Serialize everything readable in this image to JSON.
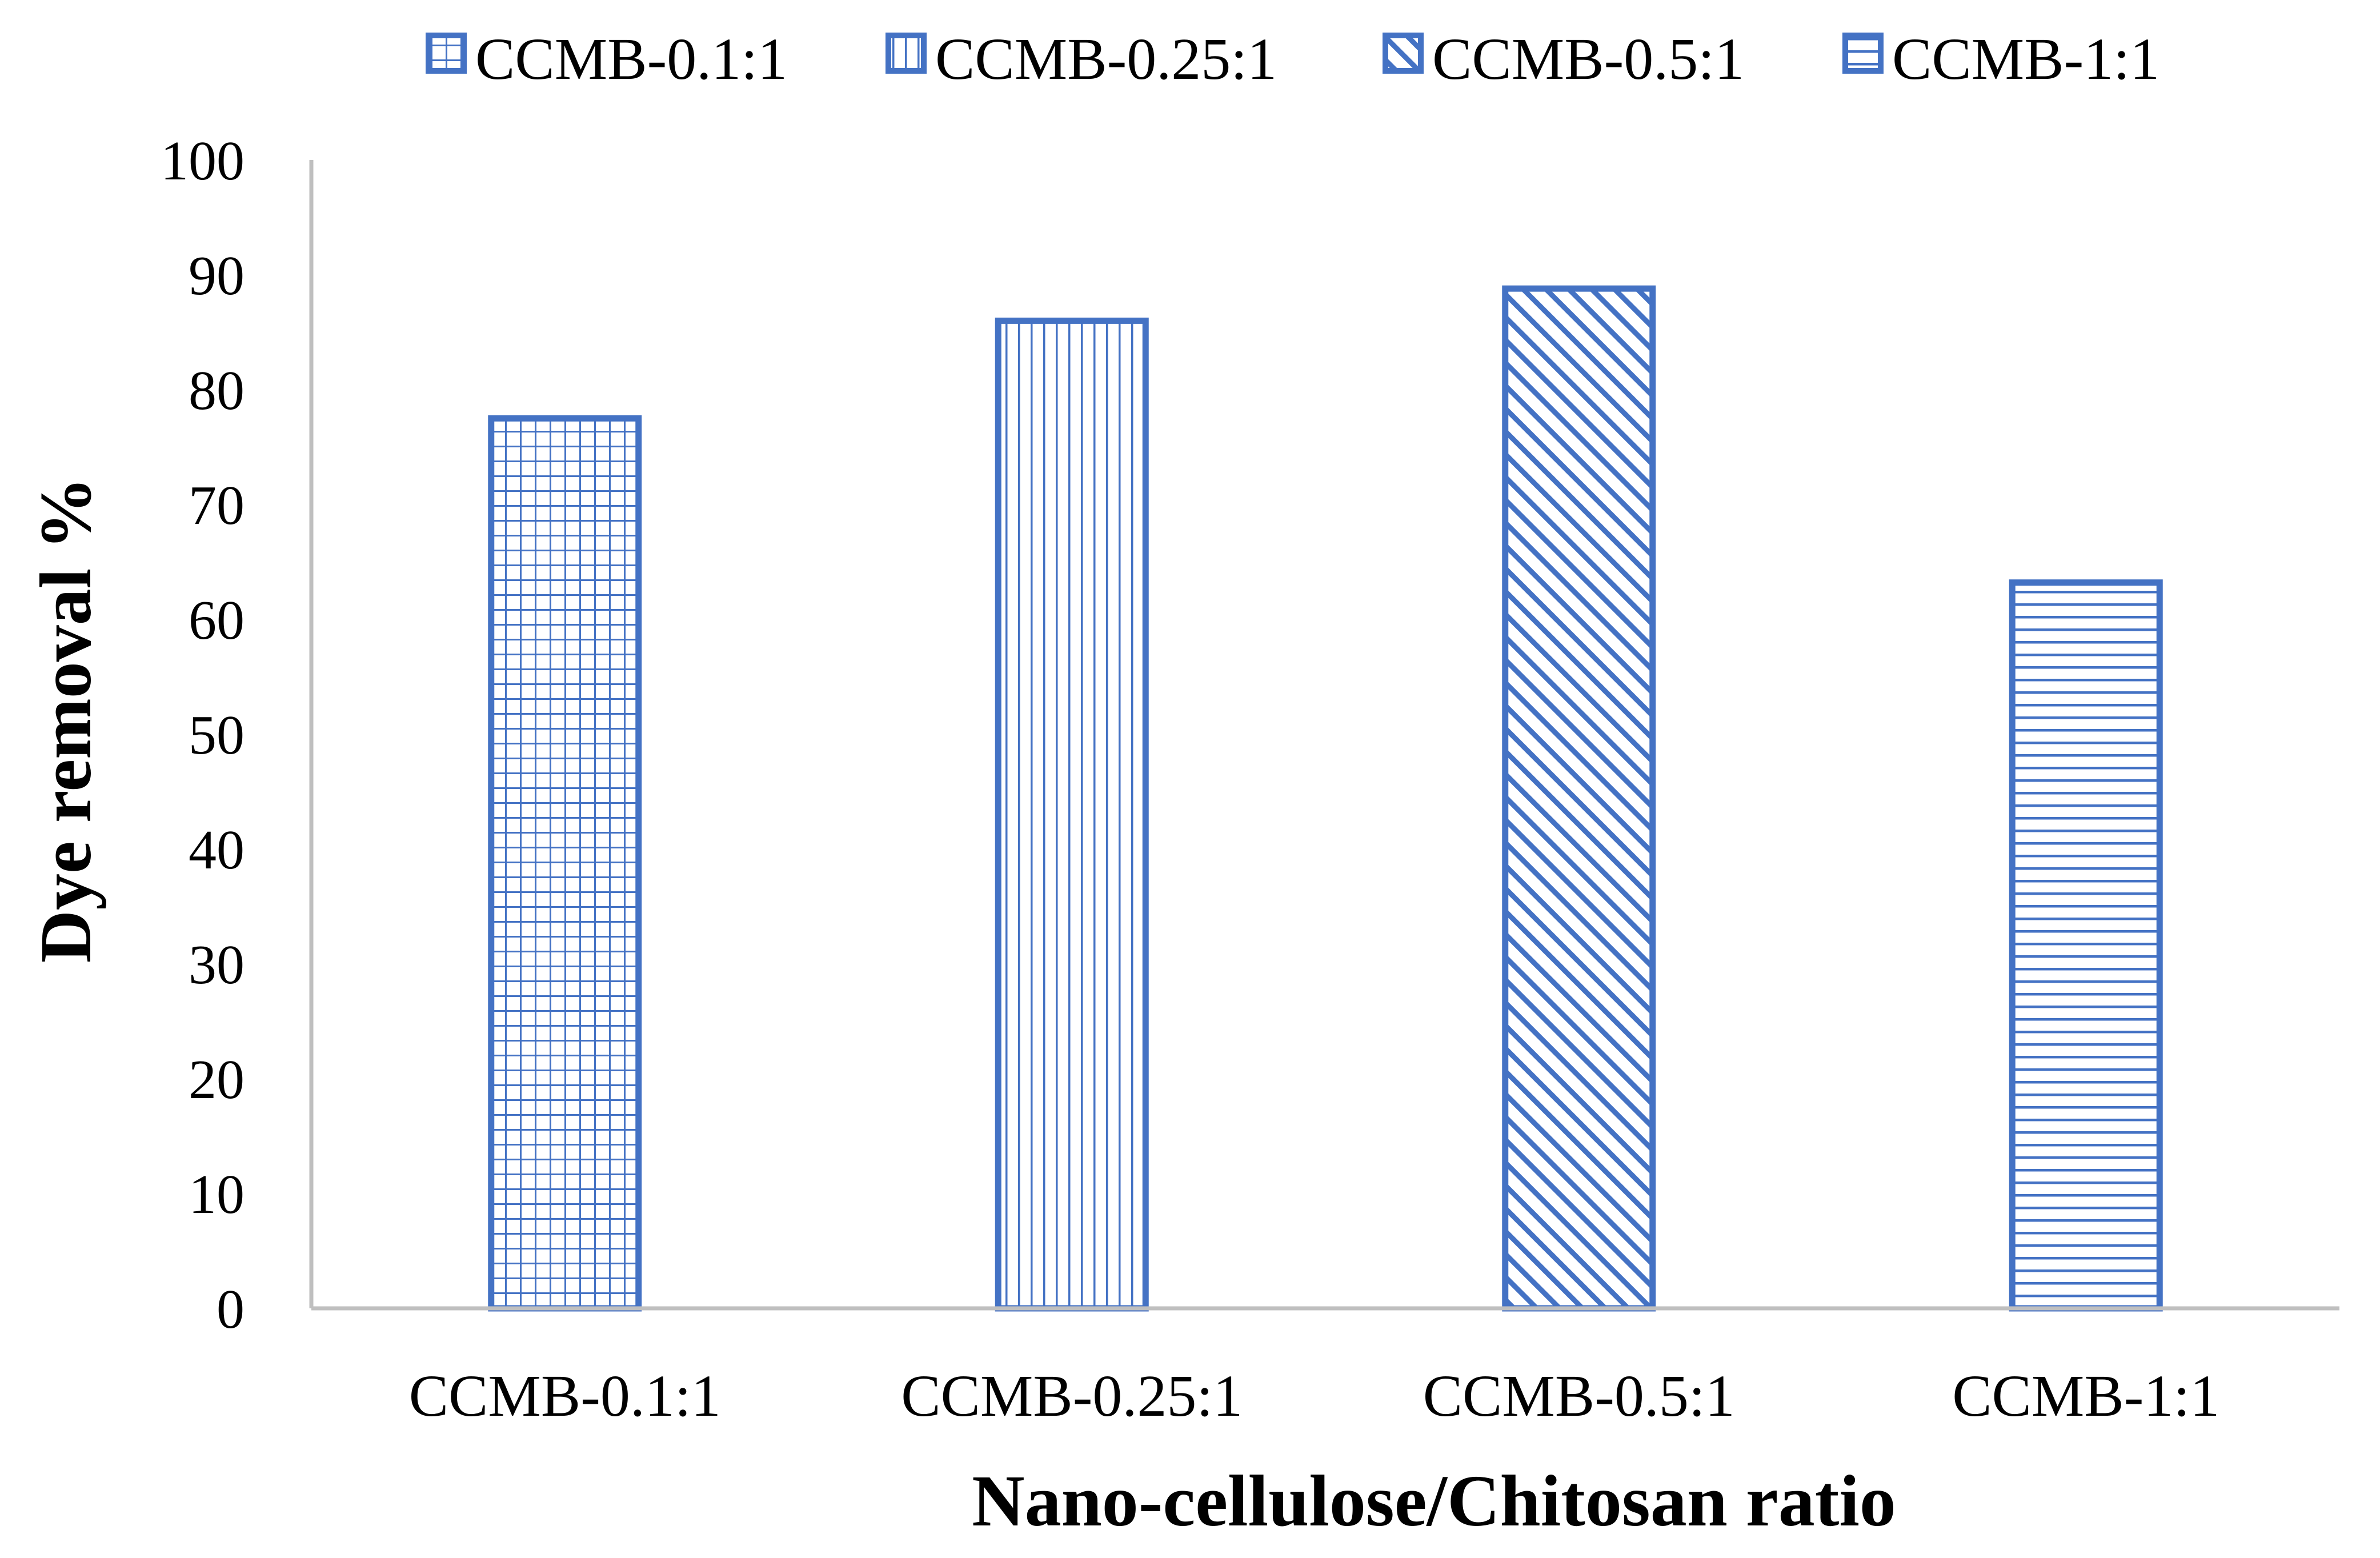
{
  "chart_data": {
    "type": "bar",
    "title": "",
    "xlabel": "Nano-cellulose/Chitosan ratio",
    "ylabel": "Dye removal %",
    "categories": [
      "CCMB-0.1:1",
      "CCMB-0.25:1",
      "CCMB-0.5:1",
      "CCMB-1:1"
    ],
    "series": [
      {
        "name": "CCMB-0.1:1",
        "values": [
          77.5,
          null,
          null,
          null
        ],
        "pattern": "grid"
      },
      {
        "name": "CCMB-0.25:1",
        "values": [
          null,
          86,
          null,
          null
        ],
        "pattern": "vertical"
      },
      {
        "name": "CCMB-0.5:1",
        "values": [
          null,
          null,
          88.8,
          null
        ],
        "pattern": "diagonal"
      },
      {
        "name": "CCMB-1:1",
        "values": [
          null,
          null,
          null,
          63.2
        ],
        "pattern": "horizontal"
      }
    ],
    "ylim": [
      0,
      100
    ],
    "yticks": [
      "0",
      "10",
      "20",
      "30",
      "40",
      "50",
      "60",
      "70",
      "80",
      "90",
      "100"
    ],
    "grid": false,
    "legend_position": "top",
    "colors": {
      "bar_stroke": "#4472C4",
      "bar_fill": "#ffffff",
      "axis": "#bfbfbf"
    }
  }
}
